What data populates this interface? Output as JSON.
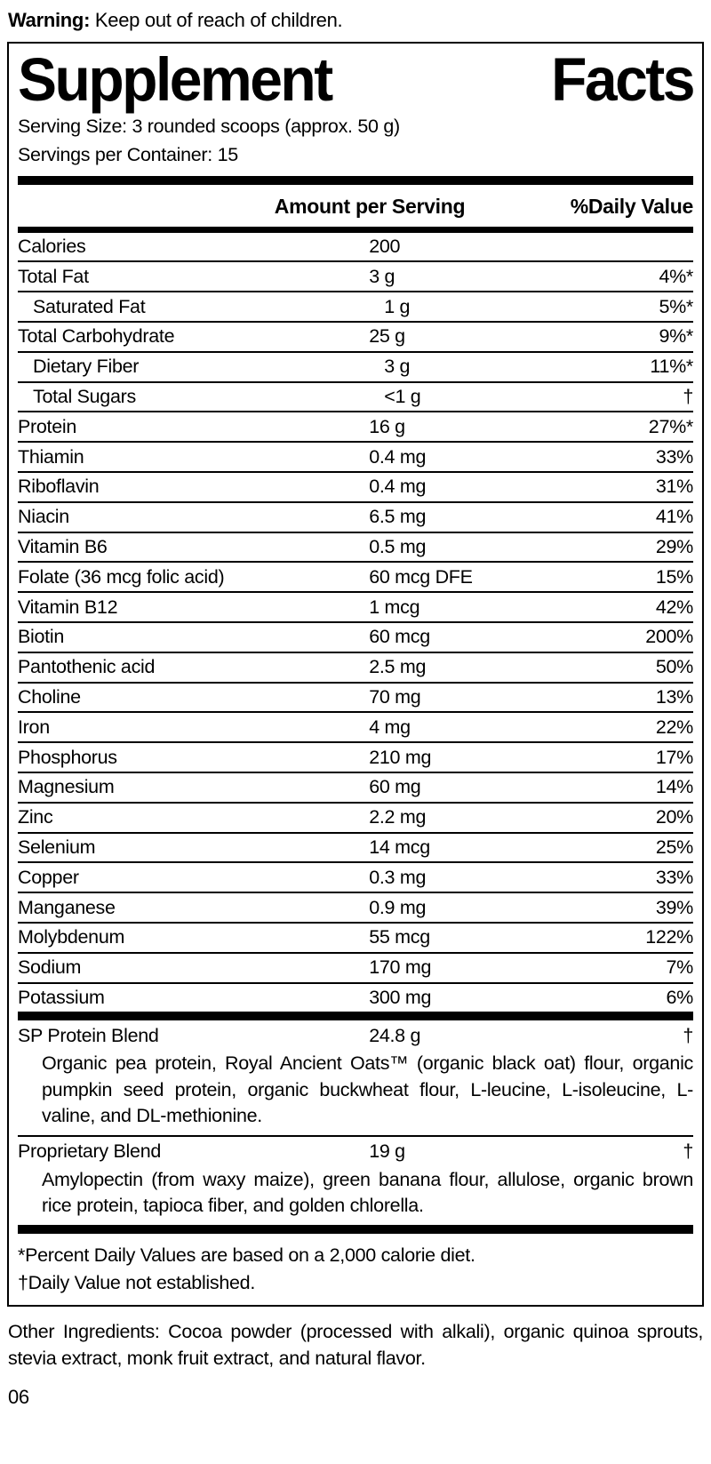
{
  "colors": {
    "text": "#000000",
    "background": "#ffffff",
    "bar": "#000000"
  },
  "warning": {
    "label": "Warning:",
    "text": "Keep out of reach of children."
  },
  "panel": {
    "title_left": "Supplement",
    "title_right": "Facts",
    "serving_size": "Serving Size: 3 rounded scoops (approx. 50 g)",
    "servings_per_container": "Servings per Container: 15",
    "columns": {
      "amount": "Amount per Serving",
      "daily_value": "%Daily Value"
    },
    "rows": [
      {
        "name": "Calories",
        "amount": "200",
        "dv": "",
        "indent": false
      },
      {
        "name": "Total Fat",
        "amount": "3 g",
        "dv": "4%*",
        "indent": false
      },
      {
        "name": "Saturated Fat",
        "amount": "1 g",
        "dv": "5%*",
        "indent": true
      },
      {
        "name": "Total Carbohydrate",
        "amount": "25 g",
        "dv": "9%*",
        "indent": false
      },
      {
        "name": "Dietary Fiber",
        "amount": "3 g",
        "dv": "11%*",
        "indent": true
      },
      {
        "name": "Total Sugars",
        "amount": "<1 g",
        "dv": "†",
        "indent": true
      },
      {
        "name": "Protein",
        "amount": "16 g",
        "dv": "27%*",
        "indent": false
      },
      {
        "name": "Thiamin",
        "amount": "0.4 mg",
        "dv": "33%",
        "indent": false
      },
      {
        "name": "Riboflavin",
        "amount": "0.4 mg",
        "dv": "31%",
        "indent": false
      },
      {
        "name": "Niacin",
        "amount": "6.5 mg",
        "dv": "41%",
        "indent": false
      },
      {
        "name": "Vitamin B6",
        "amount": "0.5 mg",
        "dv": "29%",
        "indent": false
      },
      {
        "name": "Folate (36 mcg folic acid)",
        "amount": "60 mcg DFE",
        "dv": "15%",
        "indent": false
      },
      {
        "name": "Vitamin B12",
        "amount": "1 mcg",
        "dv": "42%",
        "indent": false
      },
      {
        "name": "Biotin",
        "amount": "60 mcg",
        "dv": "200%",
        "indent": false
      },
      {
        "name": "Pantothenic acid",
        "amount": "2.5 mg",
        "dv": "50%",
        "indent": false
      },
      {
        "name": "Choline",
        "amount": "70 mg",
        "dv": "13%",
        "indent": false
      },
      {
        "name": "Iron",
        "amount": "4 mg",
        "dv": "22%",
        "indent": false
      },
      {
        "name": "Phosphorus",
        "amount": "210 mg",
        "dv": "17%",
        "indent": false
      },
      {
        "name": "Magnesium",
        "amount": "60 mg",
        "dv": "14%",
        "indent": false
      },
      {
        "name": "Zinc",
        "amount": "2.2 mg",
        "dv": "20%",
        "indent": false
      },
      {
        "name": "Selenium",
        "amount": "14 mcg",
        "dv": "25%",
        "indent": false
      },
      {
        "name": "Copper",
        "amount": "0.3 mg",
        "dv": "33%",
        "indent": false
      },
      {
        "name": "Manganese",
        "amount": "0.9 mg",
        "dv": "39%",
        "indent": false
      },
      {
        "name": "Molybdenum",
        "amount": "55 mcg",
        "dv": "122%",
        "indent": false
      },
      {
        "name": "Sodium",
        "amount": "170 mg",
        "dv": "7%",
        "indent": false
      },
      {
        "name": "Potassium",
        "amount": "300 mg",
        "dv": "6%",
        "indent": false
      }
    ],
    "blends": [
      {
        "name": "SP Protein Blend",
        "amount": "24.8 g",
        "dv": "†",
        "description": "Organic pea protein, Royal Ancient Oats™ (organic black oat) flour, organic pumpkin seed protein, organic buckwheat flour, L-leucine, L-isoleucine, L-valine, and DL-methionine."
      },
      {
        "name": "Proprietary Blend",
        "amount": "19 g",
        "dv": "†",
        "description": "Amylopectin (from waxy maize), green banana flour, allulose, organic brown rice protein, tapioca fiber, and golden chlorella."
      }
    ],
    "footnotes": [
      "*Percent Daily Values are based on a 2,000 calorie diet.",
      "†Daily Value not established."
    ]
  },
  "other_ingredients": "Other Ingredients: Cocoa powder (processed with alkali), organic quinoa sprouts, stevia extract, monk fruit extract, and natural flavor.",
  "page_number": "06"
}
